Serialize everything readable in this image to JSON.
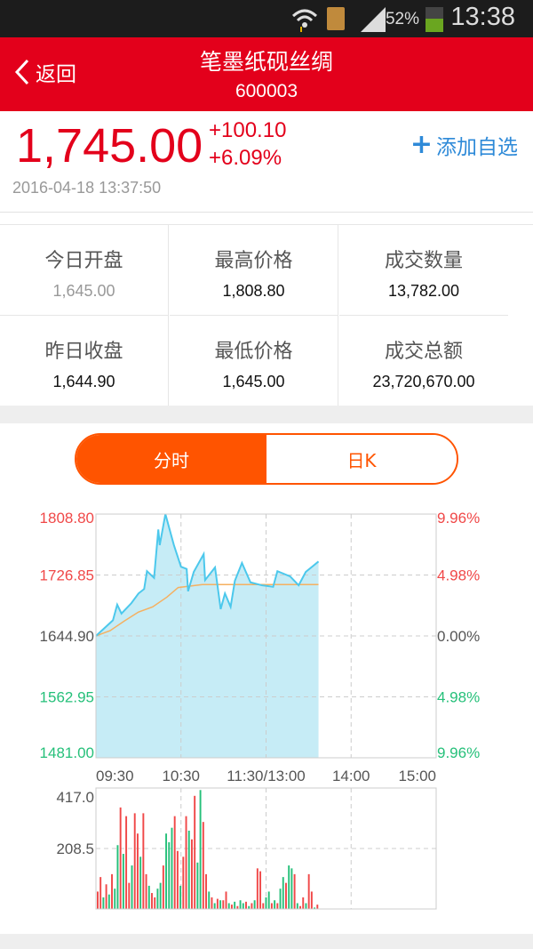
{
  "status_bar": {
    "battery": "52%",
    "time": "13:38",
    "battery_level": 0.52
  },
  "header": {
    "back_label": "返回",
    "title": "笔墨纸砚丝绸",
    "code": "600003"
  },
  "quote": {
    "price": "1,745.00",
    "change": "+100.10",
    "change_pct": "+6.09%",
    "timestamp": "2016-04-18 13:37:50",
    "add_watch": "添加自选"
  },
  "stats": [
    {
      "label": "今日开盘",
      "value": "1,645.00"
    },
    {
      "label": "最高价格",
      "value": "1,808.80"
    },
    {
      "label": "成交数量",
      "value": "13,782.00"
    },
    {
      "label": "昨日收盘",
      "value": "1,644.90"
    },
    {
      "label": "最低价格",
      "value": "1,645.00"
    },
    {
      "label": "成交总额",
      "value": "23,720,670.00"
    }
  ],
  "tabs": [
    {
      "label": "分时",
      "active": true
    },
    {
      "label": "日K",
      "active": false
    }
  ],
  "colors": {
    "up": "#f04848",
    "down": "#26c07a",
    "line": "#4cc8ec",
    "fill": "#c6ecf6",
    "avg": "#f5b060",
    "header": "#e3001b",
    "accent": "#ff5400"
  },
  "chart_data": {
    "type": "line",
    "y_left_labels": [
      "1808.80",
      "1726.85",
      "1644.90",
      "1562.95",
      "1481.00"
    ],
    "y_right_labels": [
      "9.96%",
      "4.98%",
      "0.00%",
      "4.98%",
      "9.96%"
    ],
    "ylim": [
      1481.0,
      1808.8
    ],
    "x_labels": [
      "09:30",
      "10:30",
      "11:30/13:00",
      "14:00",
      "15:00"
    ],
    "x_range_minutes": [
      0,
      240
    ],
    "price_series": [
      [
        0,
        1644.9
      ],
      [
        12,
        1666
      ],
      [
        15,
        1687
      ],
      [
        18,
        1675
      ],
      [
        25,
        1689
      ],
      [
        30,
        1702
      ],
      [
        34,
        1708
      ],
      [
        36,
        1732
      ],
      [
        41,
        1723
      ],
      [
        44,
        1788
      ],
      [
        45,
        1767
      ],
      [
        49,
        1808.8
      ],
      [
        55,
        1767
      ],
      [
        60,
        1738
      ],
      [
        64,
        1735
      ],
      [
        65,
        1705
      ],
      [
        69,
        1731
      ],
      [
        76,
        1755
      ],
      [
        77,
        1720
      ],
      [
        84,
        1737
      ],
      [
        88,
        1681
      ],
      [
        91,
        1702
      ],
      [
        95,
        1684
      ],
      [
        98,
        1719
      ],
      [
        103,
        1743
      ],
      [
        109,
        1717
      ],
      [
        117,
        1713
      ],
      [
        125,
        1711
      ],
      [
        128,
        1732
      ],
      [
        137,
        1725
      ],
      [
        143,
        1713
      ],
      [
        148,
        1731
      ],
      [
        157,
        1745
      ]
    ],
    "avg_series": [
      [
        0,
        1645
      ],
      [
        10,
        1652
      ],
      [
        20,
        1665
      ],
      [
        30,
        1677
      ],
      [
        40,
        1684
      ],
      [
        50,
        1697
      ],
      [
        58,
        1710
      ],
      [
        75,
        1714
      ],
      [
        157,
        1714
      ]
    ],
    "volume": {
      "labels": [
        "417.0",
        "208.5"
      ],
      "ylim": [
        0,
        417
      ],
      "values": [
        60,
        110,
        40,
        85,
        50,
        120,
        70,
        220,
        350,
        190,
        320,
        90,
        150,
        330,
        260,
        180,
        330,
        120,
        80,
        55,
        40,
        70,
        90,
        150,
        260,
        230,
        280,
        320,
        200,
        80,
        180,
        320,
        270,
        240,
        390,
        160,
        410,
        300,
        120,
        60,
        40,
        20,
        35,
        30,
        30,
        60,
        20,
        15,
        25,
        10,
        30,
        20,
        25,
        10,
        20,
        30,
        140,
        130,
        20,
        40,
        60,
        20,
        30,
        20,
        70,
        110,
        90,
        150,
        140,
        120,
        20,
        10,
        40,
        20,
        120,
        60,
        5,
        15
      ],
      "up": [
        1,
        1,
        0,
        1,
        0,
        1,
        0,
        0,
        1,
        0,
        1,
        1,
        0,
        1,
        1,
        0,
        1,
        1,
        0,
        1,
        1,
        0,
        0,
        1,
        0,
        0,
        0,
        1,
        1,
        0,
        1,
        1,
        0,
        1,
        1,
        0,
        0,
        1,
        1,
        0,
        1,
        0,
        1,
        0,
        1,
        1,
        0,
        1,
        0,
        1,
        0,
        0,
        1,
        0,
        1,
        0,
        1,
        1,
        1,
        0,
        0,
        1,
        0,
        1,
        0,
        0,
        1,
        0,
        0,
        1,
        0,
        1,
        1,
        0,
        1,
        1,
        0,
        1
      ]
    }
  }
}
